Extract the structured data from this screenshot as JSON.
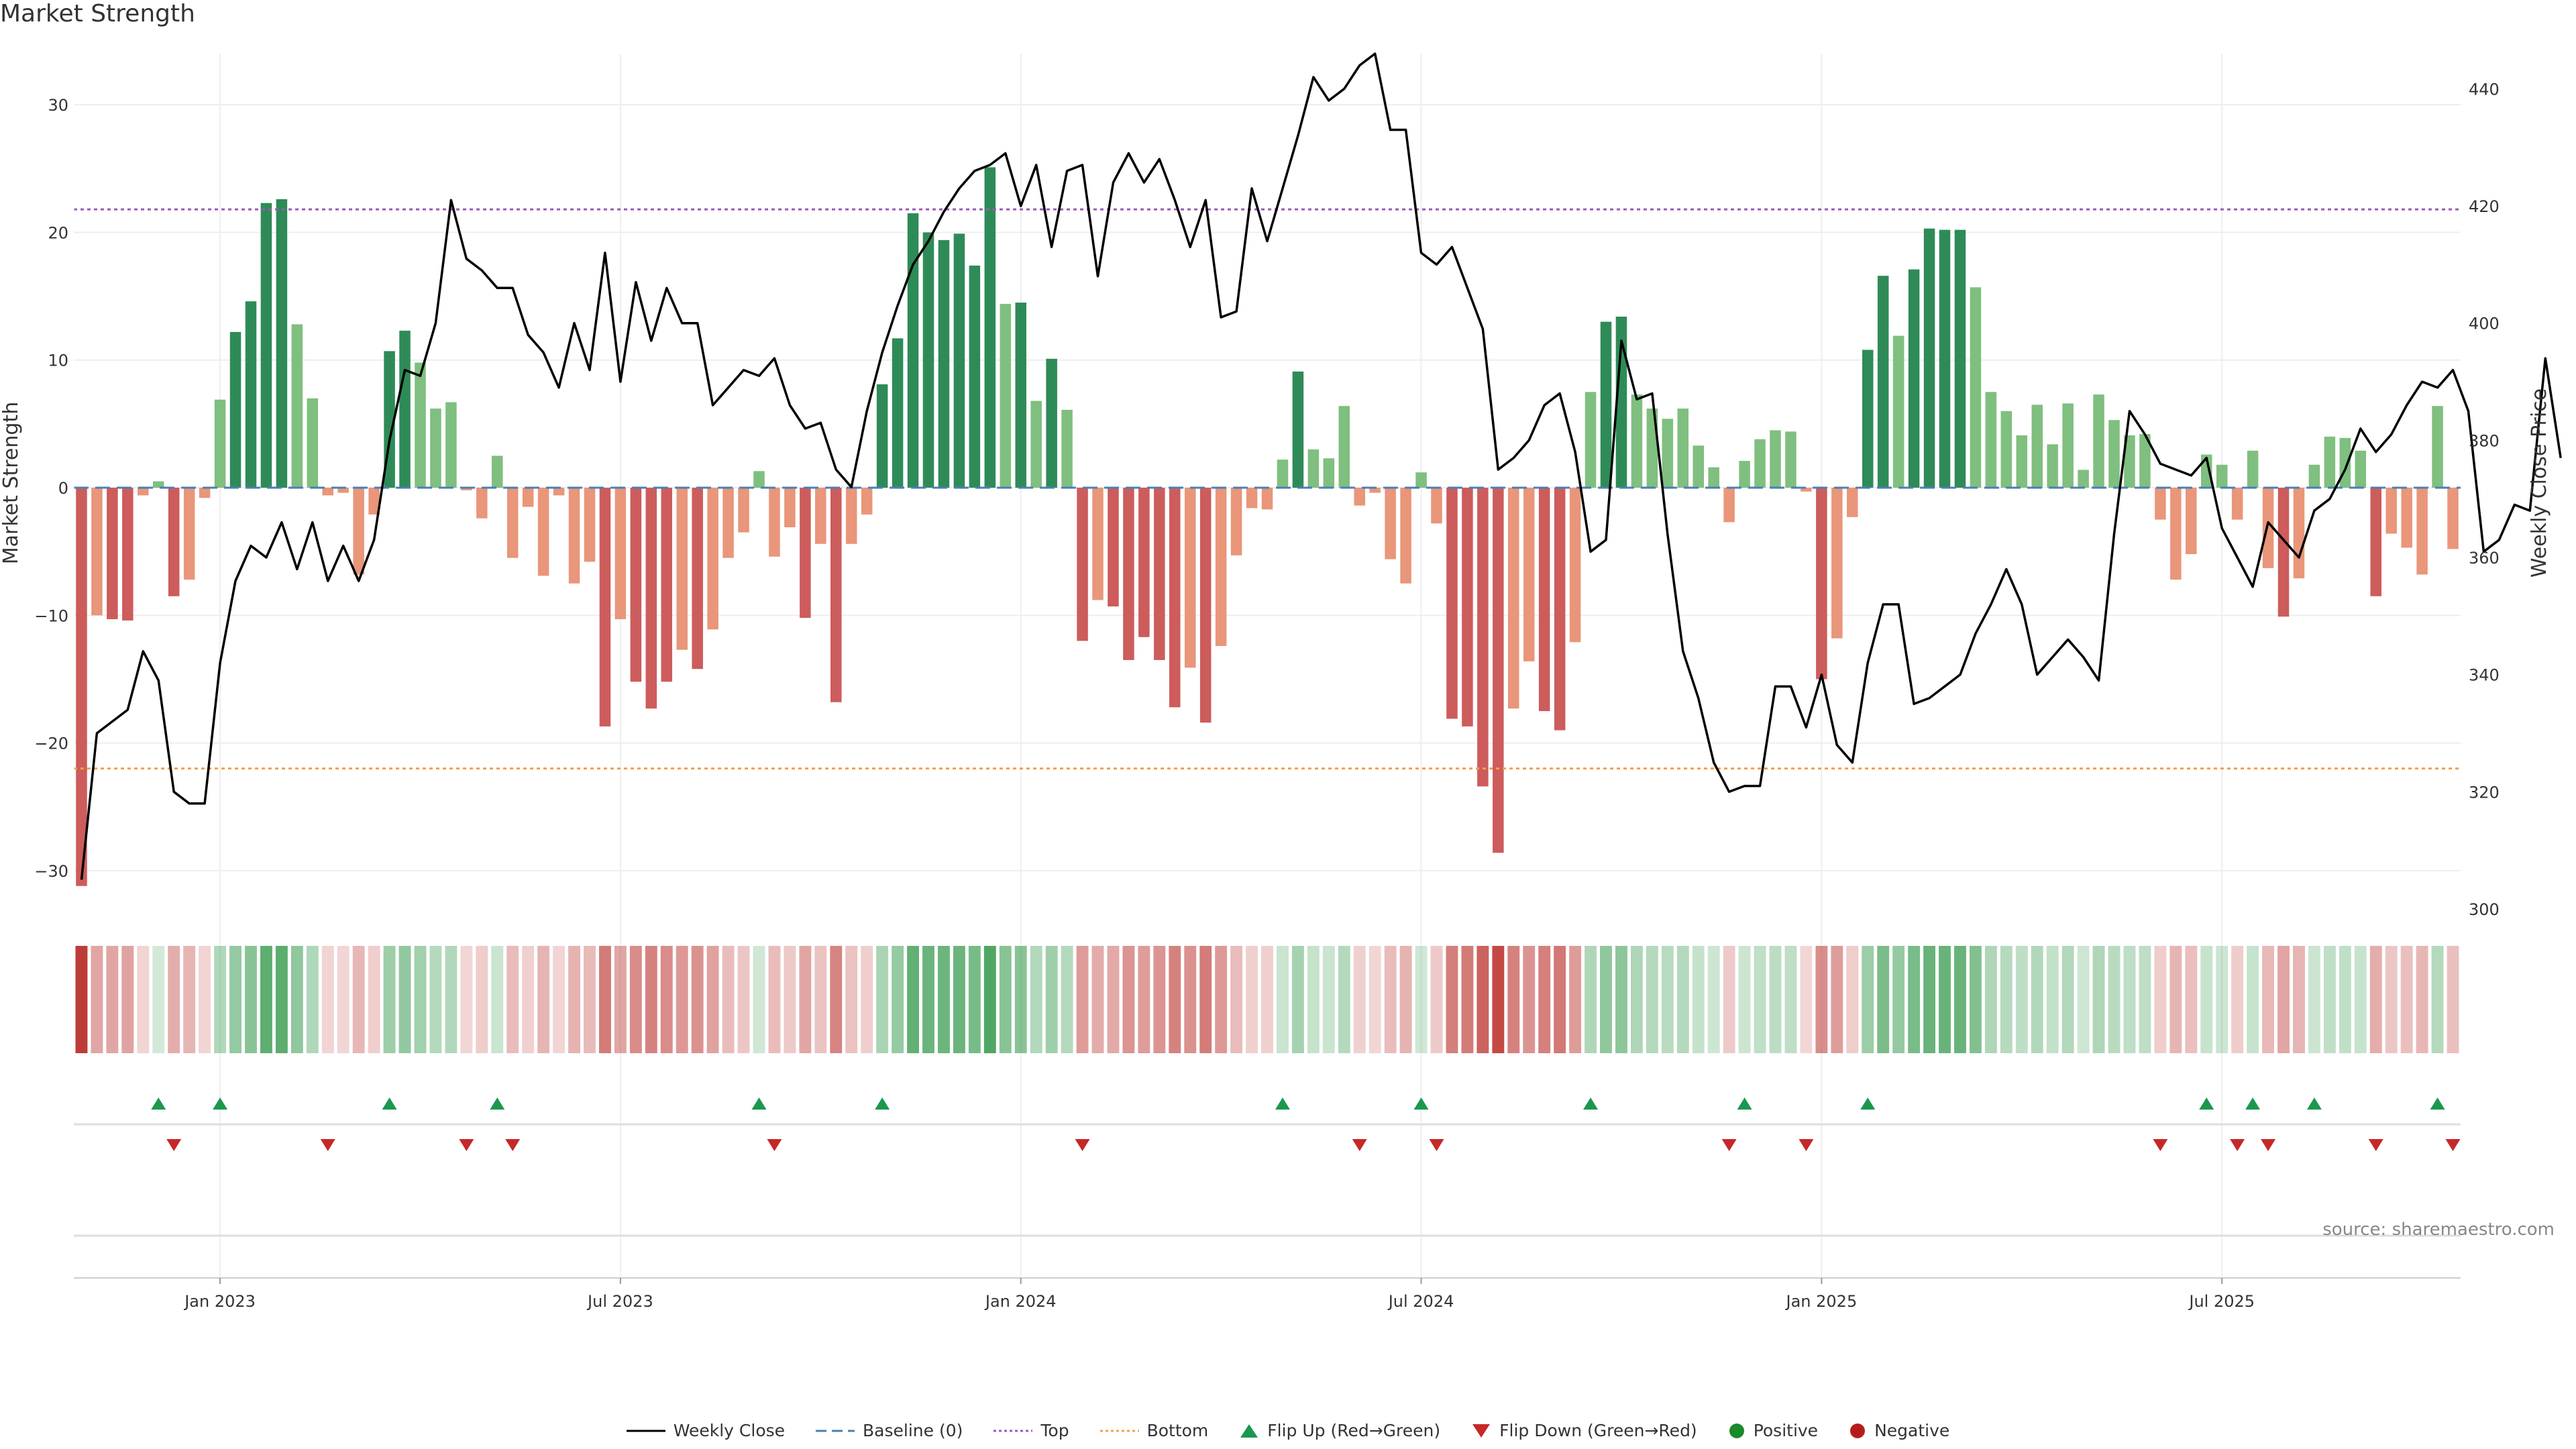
{
  "title": "Market Strength",
  "source": "source: sharemaestro.com",
  "colors": {
    "strong_green": "#2e8b57",
    "light_green": "#7fbf7f",
    "strong_red": "#cd5c5c",
    "light_red": "#e9967a",
    "price_line": "#000000",
    "baseline": "#4a7fb5",
    "top": "#9b59b6",
    "bottom": "#f0a050",
    "flip_up": "#1a9850",
    "flip_down": "#c62828"
  },
  "legend": [
    {
      "key": "weekly_close",
      "label": "Weekly Close"
    },
    {
      "key": "baseline",
      "label": "Baseline (0)"
    },
    {
      "key": "top",
      "label": "Top"
    },
    {
      "key": "bottom",
      "label": "Bottom"
    },
    {
      "key": "flip_up",
      "label": "Flip Up (Red→Green)"
    },
    {
      "key": "flip_down",
      "label": "Flip Down (Green→Red)"
    },
    {
      "key": "positive",
      "label": "Positive"
    },
    {
      "key": "negative",
      "label": "Negative"
    }
  ],
  "chart_data": {
    "type": "bar",
    "title": "Market Strength",
    "ylabel": "Market Strength",
    "y2label": "Weekly Close Price",
    "ylim": [
      -33,
      34
    ],
    "y2lim": [
      300,
      446
    ],
    "yticks": [
      30,
      20,
      10,
      0,
      -10,
      -20,
      -30
    ],
    "y2ticks": [
      440,
      420,
      400,
      380,
      360,
      340,
      320,
      300
    ],
    "x_tick_labels": [
      "Jan 2023",
      "Jul 2023",
      "Jan 2024",
      "Jul 2024",
      "Jan 2025",
      "Jul 2025"
    ],
    "x_tick_week_index": [
      9,
      35,
      61,
      87,
      113,
      139
    ],
    "top_line": 21.8,
    "bottom_line": -22,
    "baseline": 0,
    "strength": [
      -31.2,
      -10,
      -10.3,
      -10.4,
      -0.6,
      0.5,
      -8.5,
      -7.2,
      -0.8,
      6.9,
      12.2,
      14.6,
      22.3,
      22.6,
      12.8,
      7,
      -0.6,
      -0.4,
      -6.8,
      -2.1,
      10.7,
      12.3,
      9.8,
      6.2,
      6.7,
      -0.2,
      -2.4,
      2.5,
      -5.5,
      -1.5,
      -6.9,
      -0.6,
      -7.5,
      -5.8,
      -18.7,
      -10.3,
      -15.2,
      -17.3,
      -15.2,
      -12.7,
      -14.2,
      -11.1,
      -5.5,
      -3.5,
      1.3,
      -5.4,
      -3.1,
      -10.2,
      -4.4,
      -16.8,
      -4.4,
      -2.1,
      8.1,
      11.7,
      21.5,
      20,
      19.4,
      19.9,
      17.4,
      25.1,
      14.4,
      14.5,
      6.8,
      10.1,
      6.1,
      -12,
      -8.8,
      -9.3,
      -13.5,
      -11.7,
      -13.5,
      -17.2,
      -14.1,
      -18.4,
      -12.4,
      -5.3,
      -1.6,
      -1.7,
      2.2,
      9.1,
      3,
      2.3,
      6.4,
      -1.4,
      -0.4,
      -5.6,
      -7.5,
      1.2,
      -2.8,
      -18.1,
      -18.7,
      -23.4,
      -28.6,
      -17.3,
      -13.6,
      -17.5,
      -19,
      -12.1,
      7.5,
      13,
      13.4,
      7.3,
      6.2,
      5.4,
      6.2,
      3.3,
      1.6,
      -2.7,
      2.1,
      3.8,
      4.5,
      4.4,
      -0.3,
      -15,
      -11.8,
      -2.3,
      10.8,
      16.6,
      11.9,
      17.1,
      20.3,
      20.2,
      20.2,
      15.7,
      7.5,
      6,
      4.1,
      6.5,
      3.4,
      6.6,
      1.4,
      7.3,
      5.3,
      4.1,
      4.2,
      -2.5,
      -7.2,
      -5.2,
      2.6,
      1.8,
      -2.5,
      2.9,
      -6.3,
      -10.1,
      -7.1,
      1.8,
      4,
      3.9,
      2.9,
      -8.5,
      -3.6,
      -4.7,
      -6.8,
      6.4,
      -4.8
    ],
    "weekly_close": [
      305,
      330,
      332,
      334,
      344,
      339,
      320,
      318,
      318,
      342,
      356,
      362,
      360,
      366,
      358,
      366,
      356,
      362,
      356,
      363,
      380,
      392,
      391,
      400,
      421,
      411,
      409,
      406,
      406,
      398,
      395,
      389,
      400,
      392,
      412,
      390,
      407,
      397,
      406,
      400,
      400,
      386,
      389,
      392,
      391,
      394,
      386,
      382,
      383,
      375,
      372,
      385,
      395,
      403,
      410,
      414,
      419,
      423,
      426,
      427,
      429,
      420,
      427,
      413,
      426,
      427,
      408,
      424,
      429,
      424,
      428,
      421,
      413,
      421,
      401,
      402,
      423,
      414,
      423,
      432,
      442,
      438,
      440,
      444,
      446,
      433,
      433,
      412,
      410,
      413,
      406,
      399,
      375,
      377,
      380,
      386,
      388,
      378,
      361,
      363,
      397,
      387,
      388,
      364,
      344,
      336,
      325,
      320,
      321,
      321,
      338,
      338,
      331,
      340,
      328,
      325,
      342,
      352,
      352,
      335,
      336,
      338,
      340,
      347,
      352,
      358,
      352,
      340,
      343,
      346,
      343,
      339,
      364,
      385,
      381,
      376,
      375,
      374,
      377,
      365,
      360,
      355,
      366,
      363,
      360,
      368,
      370,
      375,
      382,
      378,
      381,
      386,
      390,
      389,
      392,
      385,
      361,
      363,
      369,
      368,
      394,
      377
    ]
  }
}
